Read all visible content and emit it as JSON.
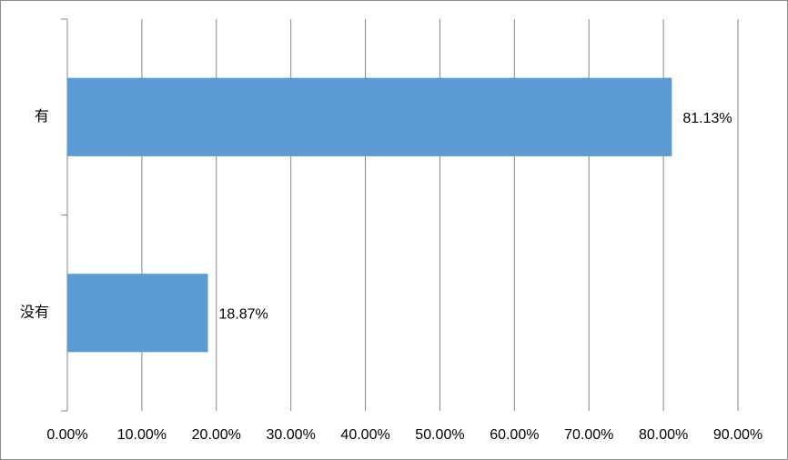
{
  "chart_data": {
    "type": "bar",
    "orientation": "horizontal",
    "categories": [
      "有",
      "没有"
    ],
    "values": [
      81.13,
      18.87
    ],
    "value_labels": [
      "81.13%",
      "18.87%"
    ],
    "color": "#5b9bd5",
    "xlim": [
      0,
      90
    ],
    "xticks": [
      {
        "value": 0,
        "label": "0.00%"
      },
      {
        "value": 10,
        "label": "10.00%"
      },
      {
        "value": 20,
        "label": "20.00%"
      },
      {
        "value": 30,
        "label": "30.00%"
      },
      {
        "value": 40,
        "label": "40.00%"
      },
      {
        "value": 50,
        "label": "50.00%"
      },
      {
        "value": 60,
        "label": "60.00%"
      },
      {
        "value": 70,
        "label": "70.00%"
      },
      {
        "value": 80,
        "label": "80.00%"
      },
      {
        "value": 90,
        "label": "90.00%"
      }
    ],
    "grid": true
  }
}
